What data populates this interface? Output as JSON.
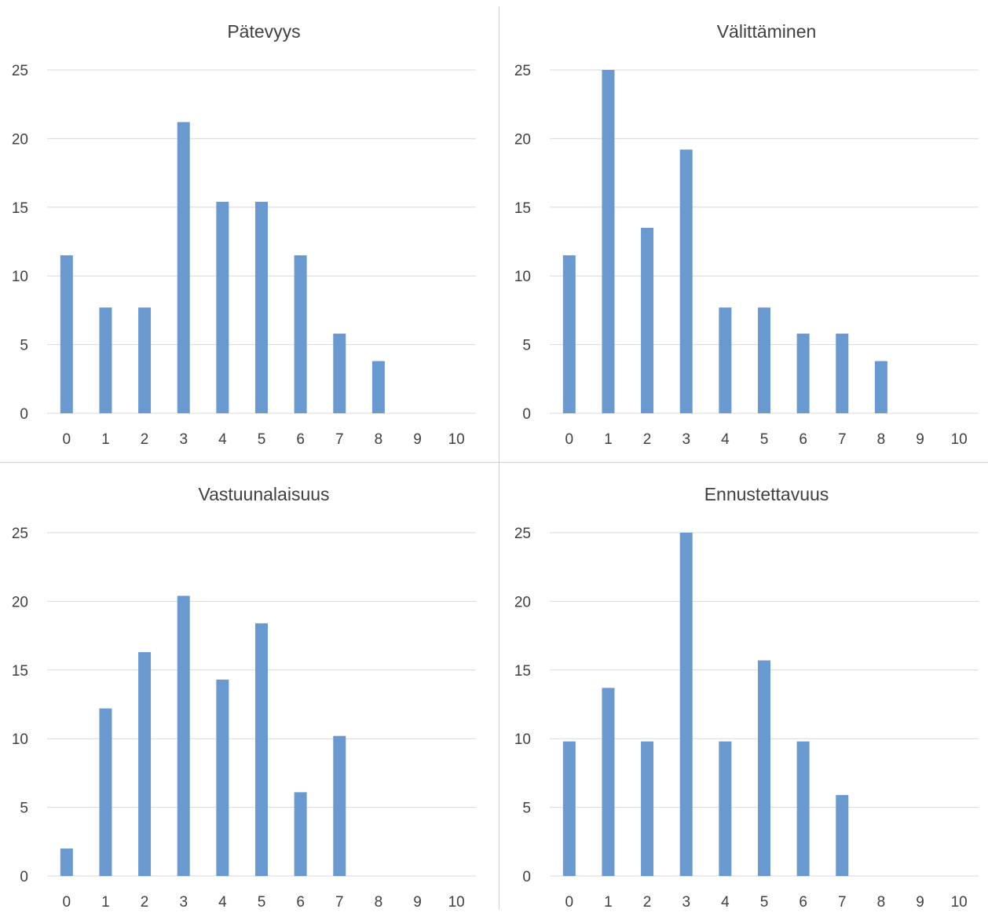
{
  "chart_data": [
    {
      "type": "bar",
      "title": "Pätevyys",
      "categories": [
        "0",
        "1",
        "2",
        "3",
        "4",
        "5",
        "6",
        "7",
        "8",
        "9",
        "10"
      ],
      "values": [
        11.5,
        7.7,
        7.7,
        21.2,
        15.4,
        15.4,
        11.5,
        5.8,
        3.8,
        0,
        0
      ],
      "yticks": [
        "0",
        "5",
        "10",
        "15",
        "20",
        "25"
      ],
      "ylim": [
        0,
        25
      ],
      "grid": true,
      "color": "#6a99d0"
    },
    {
      "type": "bar",
      "title": "Välittäminen",
      "categories": [
        "0",
        "1",
        "2",
        "3",
        "4",
        "5",
        "6",
        "7",
        "8",
        "9",
        "10"
      ],
      "values": [
        11.5,
        25,
        13.5,
        19.2,
        7.7,
        7.7,
        5.8,
        5.8,
        3.8,
        0,
        0
      ],
      "yticks": [
        "0",
        "5",
        "10",
        "15",
        "20",
        "25"
      ],
      "ylim": [
        0,
        25
      ],
      "grid": true,
      "color": "#6a99d0"
    },
    {
      "type": "bar",
      "title": "Vastuunalaisuus",
      "categories": [
        "0",
        "1",
        "2",
        "3",
        "4",
        "5",
        "6",
        "7",
        "8",
        "9",
        "10"
      ],
      "values": [
        2.0,
        12.2,
        16.3,
        20.4,
        14.3,
        18.4,
        6.1,
        10.2,
        0,
        0,
        0
      ],
      "yticks": [
        "0",
        "5",
        "10",
        "15",
        "20",
        "25"
      ],
      "ylim": [
        0,
        25
      ],
      "grid": true,
      "color": "#6a99d0"
    },
    {
      "type": "bar",
      "title": "Ennustettavuus",
      "categories": [
        "0",
        "1",
        "2",
        "3",
        "4",
        "5",
        "6",
        "7",
        "8",
        "9",
        "10"
      ],
      "values": [
        9.8,
        13.7,
        9.8,
        25,
        9.8,
        15.7,
        9.8,
        5.9,
        0,
        0,
        0
      ],
      "yticks": [
        "0",
        "5",
        "10",
        "15",
        "20",
        "25"
      ],
      "ylim": [
        0,
        25
      ],
      "grid": true,
      "color": "#6a99d0"
    }
  ]
}
